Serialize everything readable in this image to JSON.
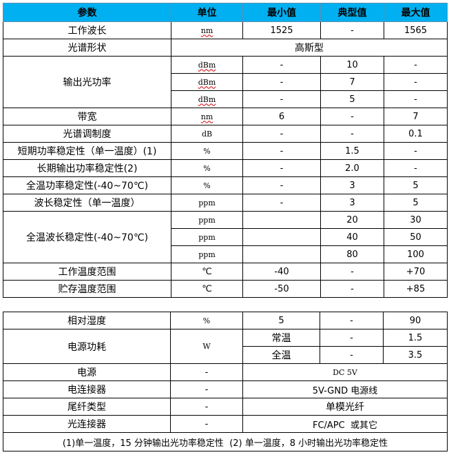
{
  "header": {
    "param": "参数",
    "unit": "单位",
    "min": "最小值",
    "typ": "典型值",
    "max": "最大值"
  },
  "accent_color": "#00b0f0",
  "t1": {
    "wavelength": {
      "p": "工作波长",
      "u": "nm",
      "min": "1525",
      "typ": "-",
      "max": "1565"
    },
    "shape": {
      "p": "光谱形状",
      "v": "高斯型"
    },
    "power": {
      "p": "输出光功率",
      "rows": [
        {
          "u": "dBm",
          "min": "-",
          "typ": "10",
          "max": "-"
        },
        {
          "u": "dBm",
          "min": "-",
          "typ": "7",
          "max": "-"
        },
        {
          "u": "dBm",
          "min": "-",
          "typ": "5",
          "max": "-"
        }
      ]
    },
    "bandwidth": {
      "p": "带宽",
      "u": "nm",
      "min": "6",
      "typ": "-",
      "max": "7"
    },
    "modulation": {
      "p": "光谱调制度",
      "u": "dB",
      "min": "-",
      "typ": "-",
      "max": "0.1"
    },
    "short_stab": {
      "p": "短期功率稳定性（单一温度）(1)",
      "u": "%",
      "min": "-",
      "typ": "1.5",
      "max": "-"
    },
    "long_stab": {
      "p": "长期输出功率稳定性(2)",
      "u": "%",
      "min": "-",
      "typ": "2.0",
      "max": "-"
    },
    "temp_power": {
      "p": "全温功率稳定性(-40~70℃)",
      "u": "%",
      "min": "-",
      "typ": "3",
      "max": "5"
    },
    "wl_stab": {
      "p": "波长稳定性（单一温度）",
      "u": "ppm",
      "min": "-",
      "typ": "3",
      "max": "5"
    },
    "temp_wl": {
      "p": "全温波长稳定性(-40~70℃)",
      "rows": [
        {
          "u": "ppm",
          "min": "",
          "typ": "20",
          "max": "30"
        },
        {
          "u": "ppm",
          "min": "",
          "typ": "40",
          "max": "50"
        },
        {
          "u": "ppm",
          "min": "",
          "typ": "80",
          "max": "100"
        }
      ]
    },
    "op_temp": {
      "p": "工作温度范围",
      "u": "℃",
      "min": "-40",
      "typ": "-",
      "max": "+70"
    },
    "st_temp": {
      "p": "贮存温度范围",
      "u": "℃",
      "min": "-50",
      "typ": "-",
      "max": "+85"
    }
  },
  "t2": {
    "humidity": {
      "p": "相对湿度",
      "u": "%",
      "min": "5",
      "typ": "-",
      "max": "90"
    },
    "consumption": {
      "p": "电源功耗",
      "u": "W",
      "rows": [
        {
          "min": "常温",
          "typ": "-",
          "max": "1.5"
        },
        {
          "min": "全温",
          "typ": "-",
          "max": "3.5"
        }
      ]
    },
    "power_supply": {
      "p": "电源",
      "u": "-",
      "v": "DC 5V"
    },
    "elec_conn": {
      "p": "电连接器",
      "u": "-",
      "v": "5V-GND 电源线"
    },
    "fiber": {
      "p": "尾纤类型",
      "u": "-",
      "v": "单模光纤"
    },
    "opt_conn": {
      "p": "光连接器",
      "u": "-",
      "v": "FC/APC  或其它"
    },
    "note": "(1)单一温度，15 分钟输出光功率稳定性  (2) 单一温度，8 小时输出光功率稳定性"
  }
}
